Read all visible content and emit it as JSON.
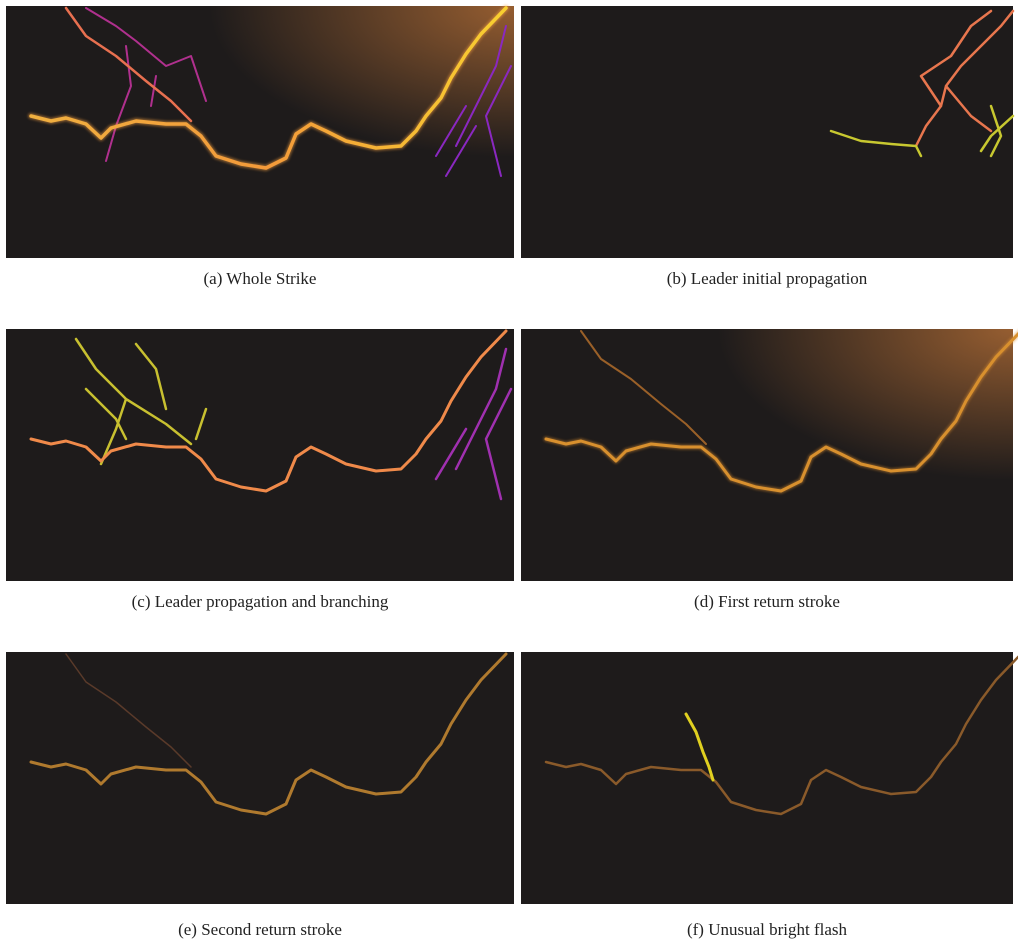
{
  "figure": {
    "panels": [
      {
        "caption": "(a) Whole Strike"
      },
      {
        "caption": "(b) Leader initial propagation"
      },
      {
        "caption": "(c) Leader propagation and branching"
      },
      {
        "caption": "(d) First return stroke"
      },
      {
        "caption": "(e) Second return stroke"
      },
      {
        "caption": "(f) Unusual bright flash"
      }
    ]
  }
}
